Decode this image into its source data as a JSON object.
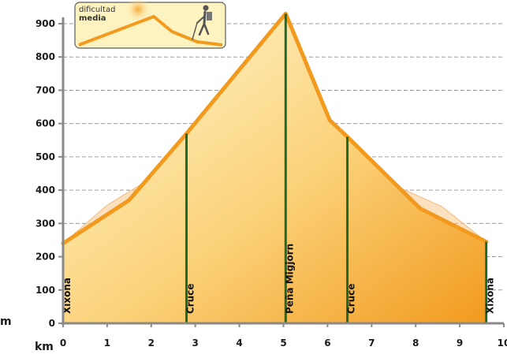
{
  "badge": {
    "line1": "dificultad",
    "line2": "media",
    "icon": "hiker-icon"
  },
  "chart_data": {
    "type": "area",
    "title": "",
    "xlabel": "km",
    "ylabel": "m",
    "xlim": [
      0,
      10
    ],
    "ylim": [
      0,
      900
    ],
    "x_ticks": [
      0,
      1,
      2,
      3,
      4,
      5,
      6,
      7,
      8,
      9,
      10
    ],
    "y_ticks": [
      0,
      100,
      200,
      300,
      400,
      500,
      600,
      700,
      800,
      900
    ],
    "grid": "horizontal dashed",
    "series": [
      {
        "values": [
          {
            "x": 0,
            "y": 240
          },
          {
            "x": 1.5,
            "y": 370
          },
          {
            "x": 2.8,
            "y": 570
          },
          {
            "x": 5.05,
            "y": 930
          },
          {
            "x": 6.05,
            "y": 610
          },
          {
            "x": 6.45,
            "y": 560
          },
          {
            "x": 8.1,
            "y": 345
          },
          {
            "x": 9.6,
            "y": 245
          }
        ]
      }
    ],
    "shadow_profile": [
      {
        "x": 0,
        "y": 240
      },
      {
        "x": 1,
        "y": 355
      },
      {
        "x": 1.8,
        "y": 420
      },
      {
        "x": 2.8,
        "y": 570
      },
      {
        "x": 6.45,
        "y": 560
      },
      {
        "x": 7.6,
        "y": 410
      },
      {
        "x": 8.6,
        "y": 350
      },
      {
        "x": 9.6,
        "y": 245
      }
    ],
    "waypoints": [
      {
        "x": 0,
        "label": "Xixona"
      },
      {
        "x": 2.8,
        "label": "Cruce"
      },
      {
        "x": 5.05,
        "label": "Peña Migjorn"
      },
      {
        "x": 6.45,
        "label": "Cruce"
      },
      {
        "x": 9.6,
        "label": "Xixona"
      }
    ],
    "colors": {
      "profile_line": "#f29a1e",
      "fill_light": "#fff6c8",
      "fill_dark": "#f29a1e",
      "waypoint_line": "#1e6a2a",
      "axis": "#8a8a8a",
      "grid": "#9a9a9a",
      "badge_bg": "#fdf3c0"
    }
  }
}
